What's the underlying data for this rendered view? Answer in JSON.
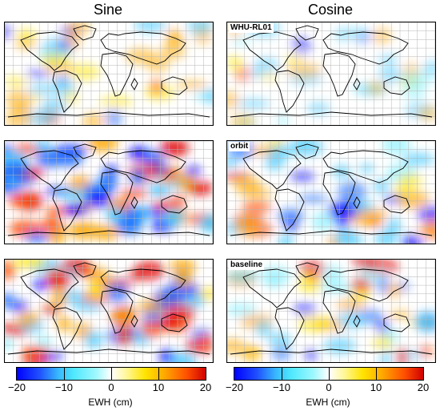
{
  "columns": {
    "left": "Sine",
    "right": "Cosine"
  },
  "panels": [
    {
      "row": 0,
      "col": "left",
      "label": "",
      "intensity": 0.35,
      "seed": 3
    },
    {
      "row": 0,
      "col": "right",
      "label": "WHU-RL01",
      "intensity": 0.2,
      "seed": 7
    },
    {
      "row": 1,
      "col": "left",
      "label": "",
      "intensity": 1.0,
      "seed": 11
    },
    {
      "row": 1,
      "col": "right",
      "label": "orbit",
      "intensity": 0.55,
      "seed": 19
    },
    {
      "row": 2,
      "col": "left",
      "label": "",
      "intensity": 0.8,
      "seed": 23
    },
    {
      "row": 2,
      "col": "right",
      "label": "baseline",
      "intensity": 0.45,
      "seed": 29
    }
  ],
  "colorbar": {
    "ticks": [
      "−20",
      "−10",
      "0",
      "10",
      "20"
    ],
    "label": "EWH (cm)",
    "range": [
      -20,
      20
    ]
  },
  "colors": {
    "negative": "#0000ff",
    "positive": "#d00000"
  }
}
